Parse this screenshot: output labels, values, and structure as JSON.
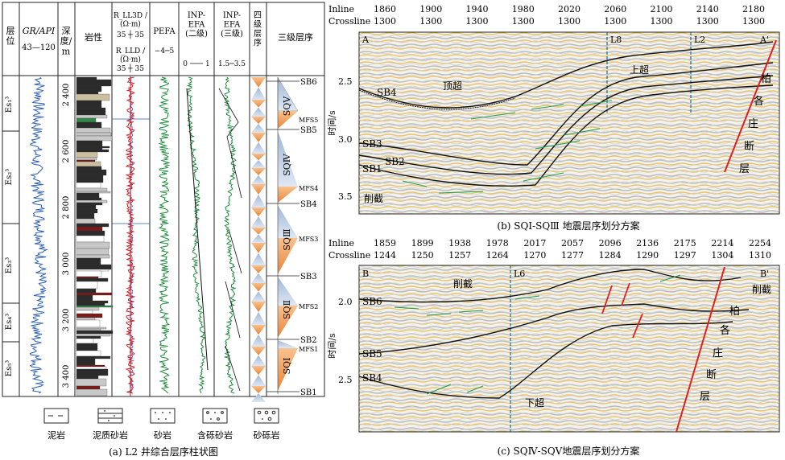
{
  "left_panel": {
    "headers": {
      "layer_pos": "层\n位",
      "gr": "GR/API",
      "gr_range": "43—120",
      "depth": "深\n度/\nm",
      "lith": "岩性",
      "res_lld3d": "R_LL3D /\n(Ω·m)",
      "res_range1": "35 ┼ 35",
      "res_lld": "R_LLD /\n(Ω·m)",
      "res_range2": "35 ┼ 35",
      "pefa": "PEFA",
      "pefa_range": "−4─5",
      "inp2": "INP-\nEFA\n(二级)",
      "inp2_range": "0 ─── 1",
      "inp3": "INP-\nEFA\n(三级)",
      "inp3_range": "1.5─3.5",
      "fourth": "四\n级\n层\n序",
      "third": "三级层序"
    },
    "depth_ticks": [
      "2 400",
      "2 600",
      "2 800",
      "3 000",
      "3 200",
      "3 400"
    ],
    "formations": [
      "Es₁³",
      "Es₂³",
      "Es₃³",
      "Es₄³",
      "Es₅³"
    ],
    "sb_labels": [
      "SB6",
      "SB5",
      "SB4",
      "SB3",
      "SB2",
      "SB1"
    ],
    "mfs_labels": [
      "MFS5",
      "MFS4",
      "MFS3",
      "MFS2",
      "MFS1"
    ],
    "sq_labels": [
      "SQⅤ",
      "SQⅣ",
      "SQⅢ",
      "SQⅡ",
      "SQⅠ"
    ],
    "legend": [
      "泥岩",
      "泥质砂岩",
      "砂岩",
      "含砾砂岩",
      "砂砾岩"
    ],
    "caption": "(a) L2 井综合层序柱状图"
  },
  "panel_b": {
    "inline_label": "Inline",
    "crossline_label": "Crossline",
    "inline_values": [
      "1860",
      "1900",
      "1940",
      "1980",
      "2020",
      "2060",
      "2100",
      "2140",
      "2180"
    ],
    "crossline_values": [
      "1300",
      "1300",
      "1300",
      "1300",
      "1300",
      "1300",
      "1300",
      "1300",
      "1300"
    ],
    "corner_left": "A",
    "corner_right": "A'",
    "well_labels": [
      "L8",
      "L2"
    ],
    "time_label": "时间/s",
    "time_ticks": [
      "2.5",
      "3.0",
      "3.5"
    ],
    "horizons": [
      "SB4",
      "SB3",
      "SB2",
      "SB1"
    ],
    "annotations": [
      "顶超",
      "上超",
      "削截"
    ],
    "fault_chars": [
      "柏",
      "各",
      "庄",
      "断",
      "层"
    ],
    "caption": "(b) SQⅠ-SQⅢ 地震层序划分方案"
  },
  "panel_c": {
    "inline_label": "Inline",
    "crossline_label": "Crossline",
    "inline_values": [
      "1859",
      "1899",
      "1938",
      "1978",
      "2017",
      "2057",
      "2096",
      "2136",
      "2175",
      "2214",
      "2254"
    ],
    "crossline_values": [
      "1244",
      "1250",
      "1257",
      "1264",
      "1270",
      "1277",
      "1284",
      "1290",
      "1297",
      "1304",
      "1310"
    ],
    "corner_left": "B",
    "corner_right": "B'",
    "well_labels": [
      "L6"
    ],
    "time_label": "时间/s",
    "time_ticks": [
      "2.0",
      "2.5"
    ],
    "horizons": [
      "SB6",
      "SB5",
      "SB4"
    ],
    "annotations": [
      "削截",
      "下超",
      "削截"
    ],
    "fault_chars": [
      "柏",
      "各",
      "庄",
      "断",
      "层"
    ],
    "caption": "(c) SQⅣ-SQⅤ地震层序划分方案"
  }
}
